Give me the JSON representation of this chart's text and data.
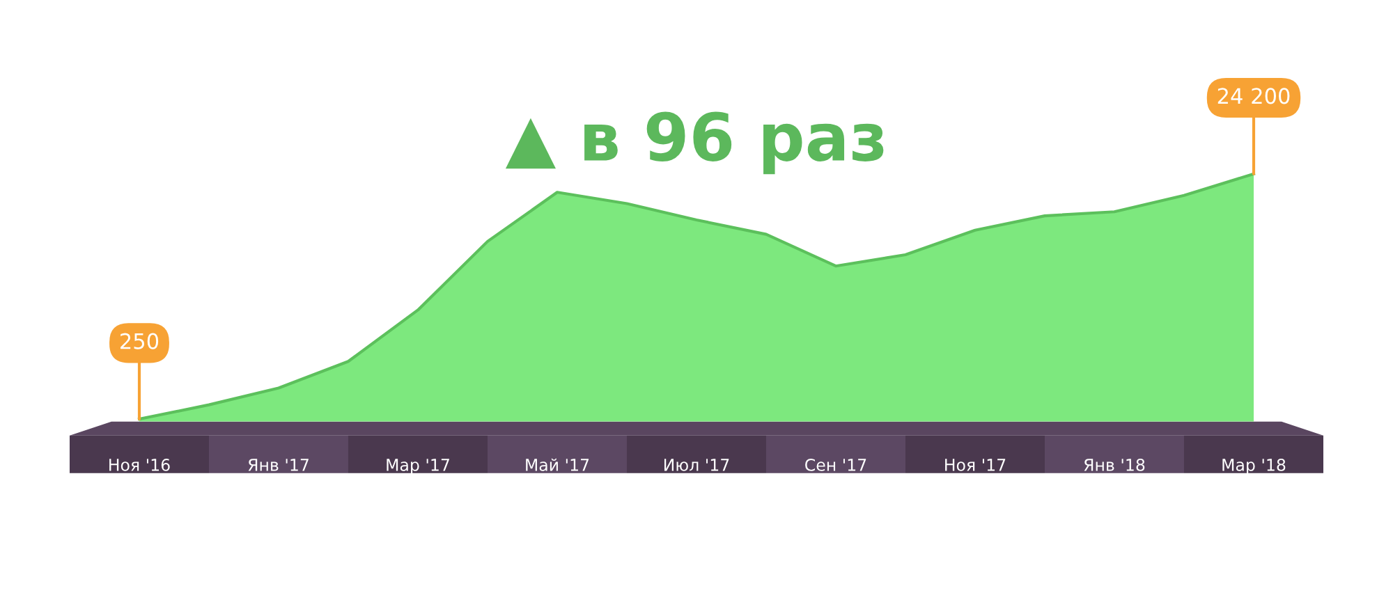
{
  "chart_data": {
    "type": "area",
    "title": "▲ в 96 раз",
    "categories": [
      "Ноя '16",
      null,
      "Янв '17",
      null,
      "Мар '17",
      null,
      "Май '17",
      null,
      "Июл '17",
      null,
      "Сен '17",
      null,
      "Ноя '17",
      null,
      "Янв '18",
      null,
      "Мар '18"
    ],
    "series": [
      {
        "color": "#7de87e",
        "values": [
          250,
          1640,
          3280,
          5880,
          10900,
          17600,
          22400,
          21300,
          19700,
          18300,
          15200,
          16300,
          18700,
          20100,
          20500,
          22100,
          24200
        ],
        "value_labels": [
          "250",
          null,
          null,
          null,
          null,
          null,
          null,
          null,
          null,
          null,
          null,
          null,
          null,
          null,
          null,
          null,
          "24 200"
        ]
      }
    ],
    "grid": false,
    "legend": false
  }
}
